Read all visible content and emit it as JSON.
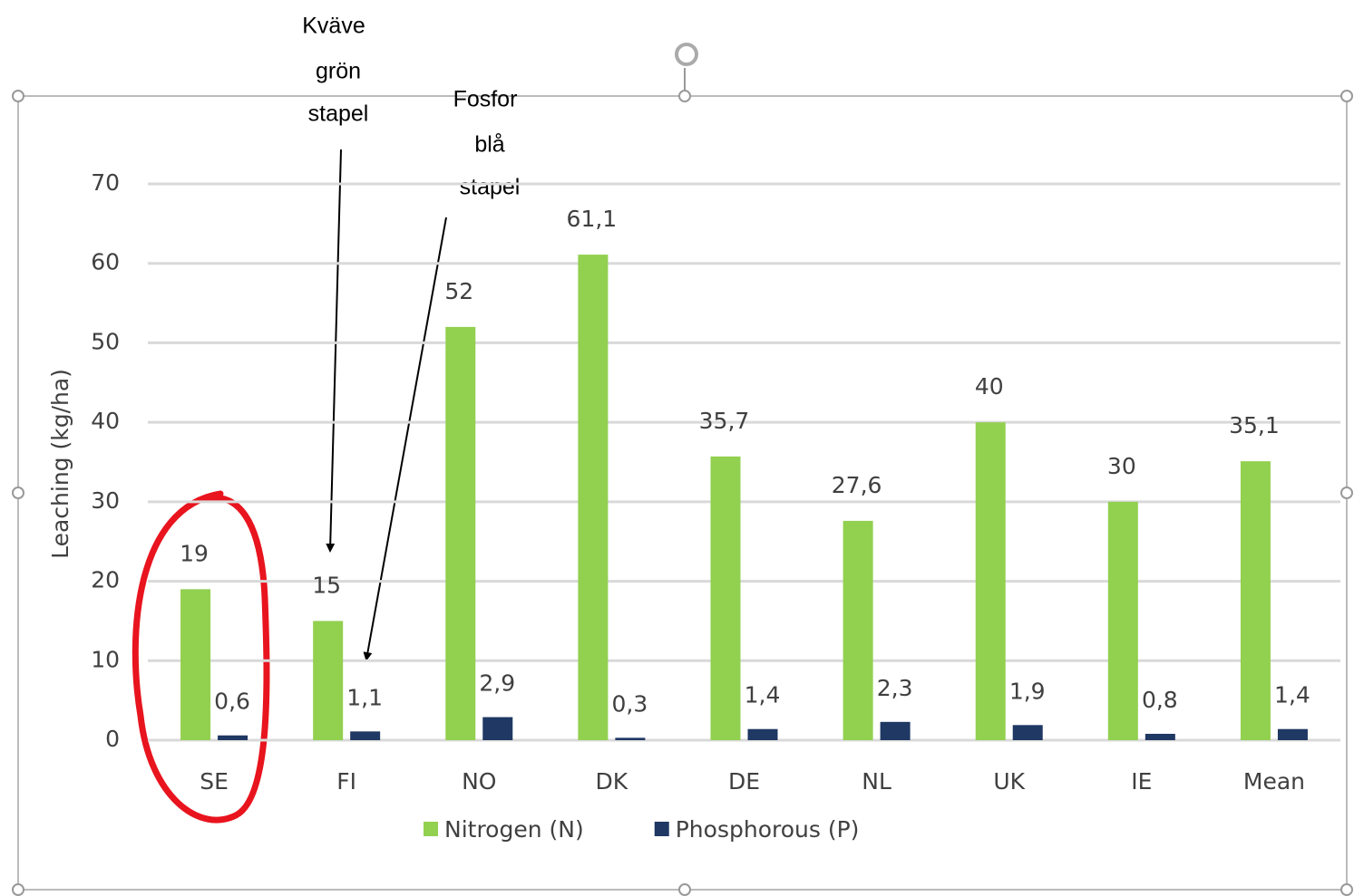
{
  "chart_data": {
    "type": "bar",
    "y_label": "Leaching (kg/ha)",
    "categories": [
      "SE",
      "FI",
      "NO",
      "DK",
      "DE",
      "NL",
      "UK",
      "IE",
      "Mean"
    ],
    "series": [
      {
        "name": "Nitrogen (N)",
        "color": "#92d050",
        "values": [
          19,
          15,
          52,
          61.1,
          35.7,
          27.6,
          40,
          30,
          35.1
        ],
        "value_labels": [
          "19",
          "15",
          "52",
          "61,1",
          "35,7",
          "27,6",
          "40",
          "30",
          "35,1"
        ]
      },
      {
        "name": "Phosphorous (P)",
        "color": "#1f3864",
        "values": [
          0.6,
          1.1,
          2.9,
          0.3,
          1.4,
          2.3,
          1.9,
          0.8,
          1.4
        ],
        "value_labels": [
          "0,6",
          "1,1",
          "2,9",
          "0,3",
          "1,4",
          "2,3",
          "1,9",
          "0,8",
          "1,4"
        ]
      }
    ],
    "ylim": [
      0,
      70
    ],
    "yticks": [
      0,
      10,
      20,
      30,
      40,
      50,
      60,
      70
    ],
    "grid": true,
    "legend": "bottom",
    "annotations": [
      {
        "title": "Kväve",
        "lines": [
          "grön",
          "stapel"
        ]
      },
      {
        "title": "Fosfor",
        "lines": [
          "blå",
          "stapel"
        ]
      }
    ]
  }
}
